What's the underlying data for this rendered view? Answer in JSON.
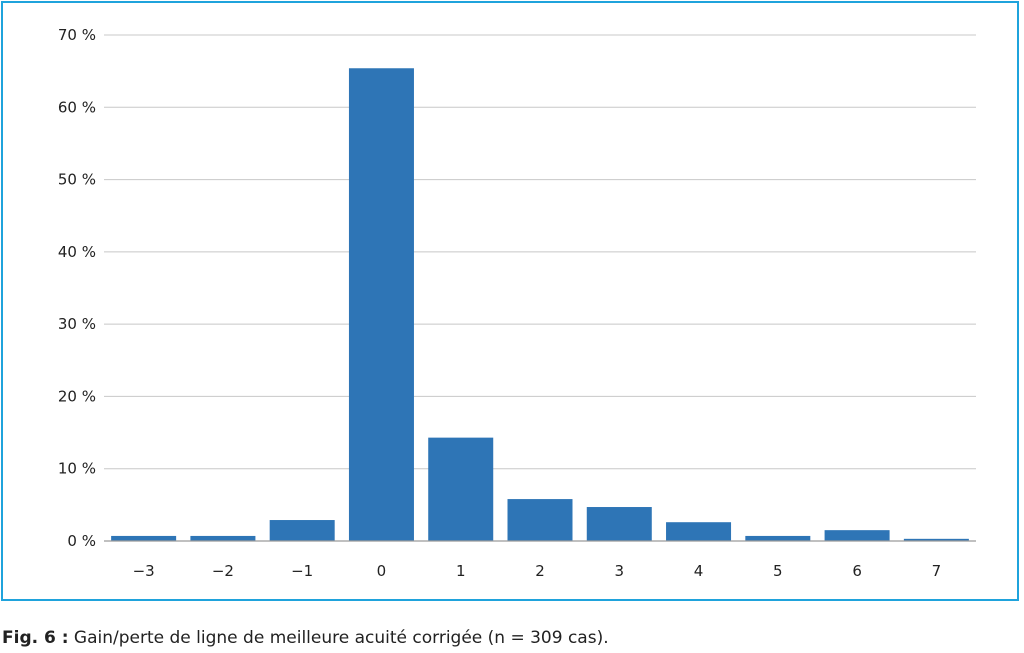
{
  "chart_data": {
    "type": "bar",
    "categories": [
      "−3",
      "−2",
      "−1",
      "0",
      "1",
      "2",
      "3",
      "4",
      "5",
      "6",
      "7"
    ],
    "values": [
      0.7,
      0.7,
      2.9,
      65.4,
      14.3,
      5.8,
      4.7,
      2.6,
      0.7,
      1.5,
      0.3
    ],
    "y_ticks": [
      "0 %",
      "10 %",
      "20 %",
      "30 %",
      "40 %",
      "50 %",
      "60 %",
      "70 %"
    ],
    "ylim": [
      0,
      70
    ],
    "grid": true,
    "bar_color": "#2e75b6",
    "frame_color": "#1fa3dc"
  },
  "caption": {
    "label": "Fig. 6 :",
    "text": " Gain/perte de ligne de meilleure acuité corrigée (n = 309 cas)."
  }
}
